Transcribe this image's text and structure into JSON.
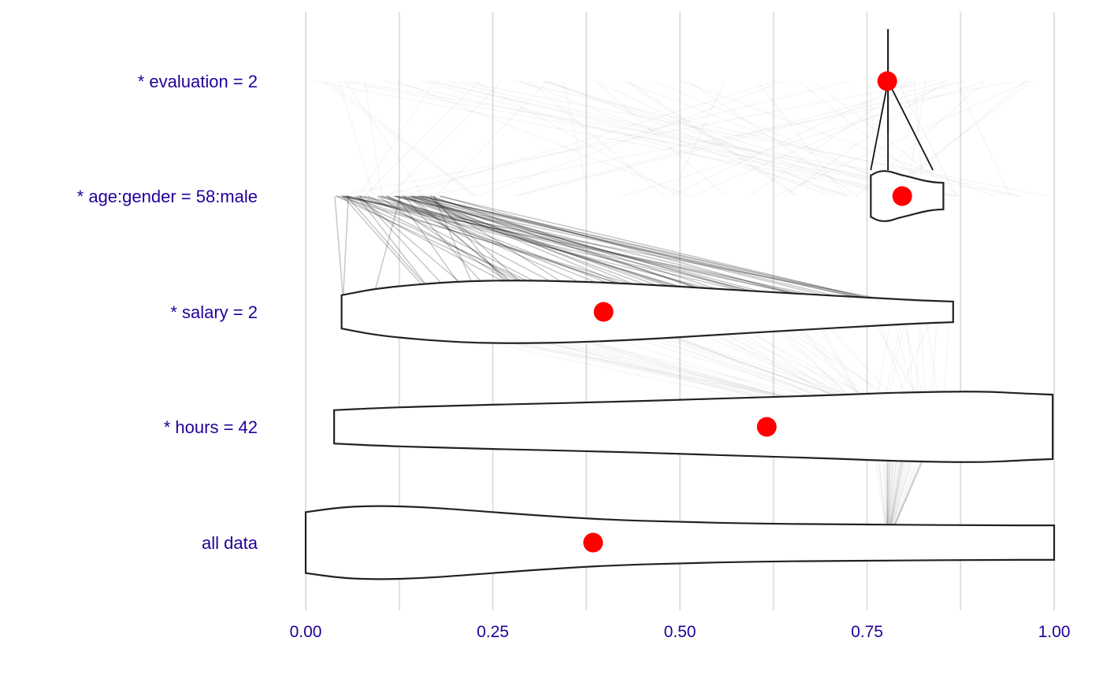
{
  "chart_data": {
    "type": "violin",
    "x_ticks": [
      "0.00",
      "0.25",
      "0.50",
      "0.75",
      "1.00"
    ],
    "x_tick_values": [
      0.0,
      0.25,
      0.5,
      0.75,
      1.0
    ],
    "xlim": [
      0,
      1
    ],
    "grid": "vertical",
    "categories": [
      "* evaluation = 2",
      "* age:gender = 58:male",
      "* salary = 2",
      "* hours = 42",
      "all data"
    ],
    "means": [
      0.777,
      0.797,
      0.398,
      0.616,
      0.384
    ],
    "violins": [
      {
        "category": "* evaluation = 2",
        "profile": [
          [
            0.778,
            0.01
          ],
          [
            0.778,
            0.0
          ]
        ]
      },
      {
        "category": "* age:gender = 58:male",
        "profile": [
          [
            0.755,
            0.36
          ],
          [
            0.765,
            0.43
          ],
          [
            0.778,
            0.44
          ],
          [
            0.792,
            0.38
          ],
          [
            0.808,
            0.33
          ],
          [
            0.822,
            0.28
          ],
          [
            0.838,
            0.24
          ],
          [
            0.852,
            0.23
          ]
        ]
      },
      {
        "category": "* salary = 2",
        "profile": [
          [
            0.048,
            0.29
          ],
          [
            0.1,
            0.42
          ],
          [
            0.2,
            0.53
          ],
          [
            0.28,
            0.55
          ],
          [
            0.36,
            0.53
          ],
          [
            0.45,
            0.48
          ],
          [
            0.55,
            0.4
          ],
          [
            0.65,
            0.32
          ],
          [
            0.75,
            0.25
          ],
          [
            0.82,
            0.2
          ],
          [
            0.865,
            0.18
          ]
        ]
      },
      {
        "category": "* hours = 42",
        "profile": [
          [
            0.038,
            0.29
          ],
          [
            0.1,
            0.33
          ],
          [
            0.2,
            0.37
          ],
          [
            0.3,
            0.4
          ],
          [
            0.4,
            0.43
          ],
          [
            0.5,
            0.47
          ],
          [
            0.6,
            0.51
          ],
          [
            0.7,
            0.55
          ],
          [
            0.8,
            0.6
          ],
          [
            0.9,
            0.62
          ],
          [
            0.96,
            0.58
          ],
          [
            0.998,
            0.56
          ]
        ]
      },
      {
        "category": "all data",
        "profile": [
          [
            0.0,
            0.53
          ],
          [
            0.05,
            0.62
          ],
          [
            0.1,
            0.64
          ],
          [
            0.15,
            0.62
          ],
          [
            0.2,
            0.58
          ],
          [
            0.3,
            0.48
          ],
          [
            0.4,
            0.4
          ],
          [
            0.5,
            0.36
          ],
          [
            0.6,
            0.33
          ],
          [
            0.7,
            0.32
          ],
          [
            0.8,
            0.31
          ],
          [
            0.9,
            0.3
          ],
          [
            1.0,
            0.3
          ]
        ]
      }
    ]
  },
  "colors": {
    "label": "#220099",
    "mean_point": "#ff0000",
    "violin_stroke": "#222222",
    "grid": "#e0e0e0"
  }
}
